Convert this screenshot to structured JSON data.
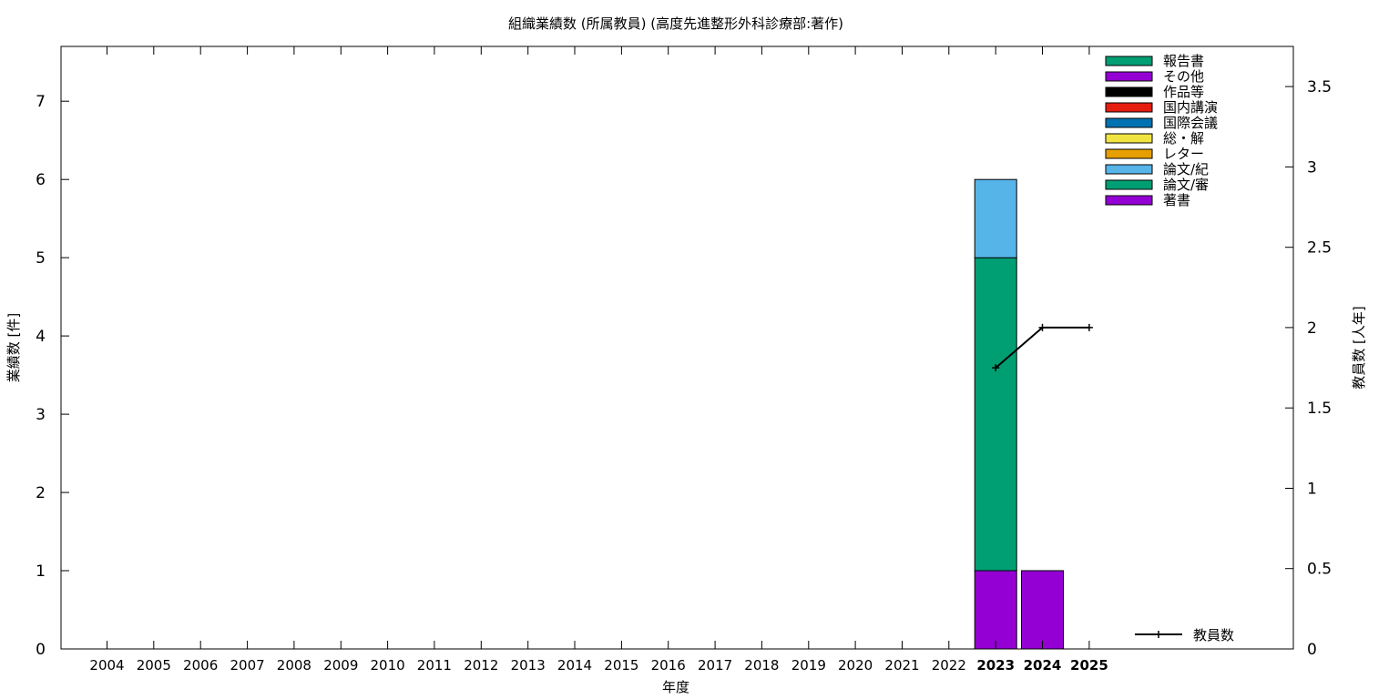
{
  "chart_data": {
    "type": "bar",
    "title": "組織業績数 (所属教員) (高度先進整形外科診療部:著作)",
    "xlabel": "年度",
    "ylabel": "業績数 [件]",
    "y2label": "教員数 [人年]",
    "categories": [
      "2004",
      "2005",
      "2006",
      "2007",
      "2008",
      "2009",
      "2010",
      "2011",
      "2012",
      "2013",
      "2014",
      "2015",
      "2016",
      "2017",
      "2018",
      "2019",
      "2020",
      "2021",
      "2022",
      "2023",
      "2024",
      "2025"
    ],
    "bold_categories": [
      "2023",
      "2024",
      "2025"
    ],
    "ylim": [
      0,
      7.7
    ],
    "yticks": [
      0,
      1,
      2,
      3,
      4,
      5,
      6,
      7
    ],
    "y2lim": [
      0,
      3.75
    ],
    "y2ticks": [
      "0",
      "0.5",
      "1",
      "1.5",
      "2",
      "2.5",
      "3",
      "3.5"
    ],
    "grid": false,
    "legend_position": "top-right",
    "legend": [
      {
        "name": "報告書",
        "color": "#009e73"
      },
      {
        "name": "その他",
        "color": "#9400d3"
      },
      {
        "name": "作品等",
        "color": "#000000"
      },
      {
        "name": "国内講演",
        "color": "#e51e10"
      },
      {
        "name": "国際会議",
        "color": "#0072b2"
      },
      {
        "name": "総・解",
        "color": "#f0e442"
      },
      {
        "name": "レター",
        "color": "#e69f00"
      },
      {
        "name": "論文/紀",
        "color": "#56b4e9"
      },
      {
        "name": "論文/審",
        "color": "#009e73"
      },
      {
        "name": "著書",
        "color": "#9400d3"
      }
    ],
    "series": [
      {
        "name": "著書",
        "color": "#9400d3",
        "values": [
          0,
          0,
          0,
          0,
          0,
          0,
          0,
          0,
          0,
          0,
          0,
          0,
          0,
          0,
          0,
          0,
          0,
          0,
          0,
          1,
          1,
          0
        ]
      },
      {
        "name": "論文/審",
        "color": "#009e73",
        "values": [
          0,
          0,
          0,
          0,
          0,
          0,
          0,
          0,
          0,
          0,
          0,
          0,
          0,
          0,
          0,
          0,
          0,
          0,
          0,
          4,
          0,
          0
        ]
      },
      {
        "name": "論文/紀",
        "color": "#56b4e9",
        "values": [
          0,
          0,
          0,
          0,
          0,
          0,
          0,
          0,
          0,
          0,
          0,
          0,
          0,
          0,
          0,
          0,
          0,
          0,
          0,
          1,
          0,
          0
        ]
      }
    ],
    "line_series": {
      "name": "教員数",
      "axis": "y2",
      "color": "#000000",
      "x": [
        "2023",
        "2024",
        "2025"
      ],
      "values": [
        1.75,
        2,
        2
      ]
    }
  }
}
